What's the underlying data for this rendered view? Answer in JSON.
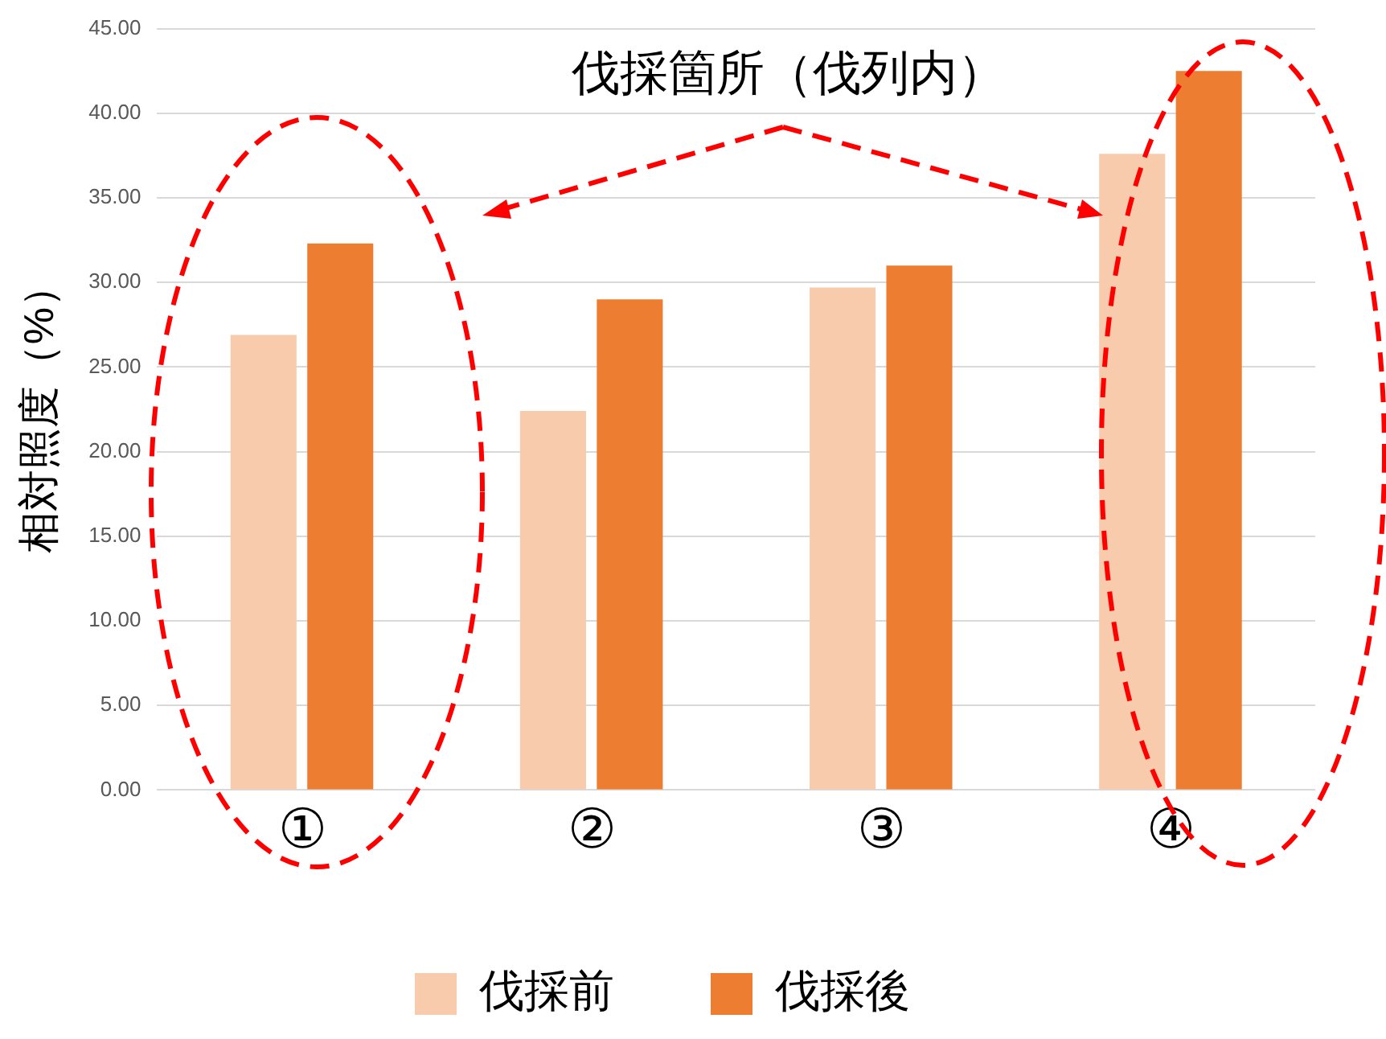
{
  "chart_data": {
    "type": "bar",
    "ylabel": "相対照度（%）",
    "categories": [
      "①",
      "②",
      "③",
      "④"
    ],
    "series": [
      {
        "name": "伐採前",
        "color": "#f8cbad",
        "values": [
          26.9,
          22.4,
          29.7,
          37.6
        ]
      },
      {
        "name": "伐採後",
        "color": "#ed7d31",
        "values": [
          32.3,
          29.0,
          31.0,
          42.5
        ]
      }
    ],
    "ylim": [
      0,
      45
    ],
    "yticks": [
      {
        "value": 0,
        "label": "0.00"
      },
      {
        "value": 5,
        "label": "5.00"
      },
      {
        "value": 10,
        "label": "10.00"
      },
      {
        "value": 15,
        "label": "15.00"
      },
      {
        "value": 20,
        "label": "20.00"
      },
      {
        "value": 25,
        "label": "25.00"
      },
      {
        "value": 30,
        "label": "30.00"
      },
      {
        "value": 35,
        "label": "35.00"
      },
      {
        "value": 40,
        "label": "40.00"
      },
      {
        "value": 45,
        "label": "45.00"
      }
    ],
    "grid": "y",
    "legend": "bottom",
    "annotations": [
      "伐採箇所（伐列内）"
    ]
  }
}
